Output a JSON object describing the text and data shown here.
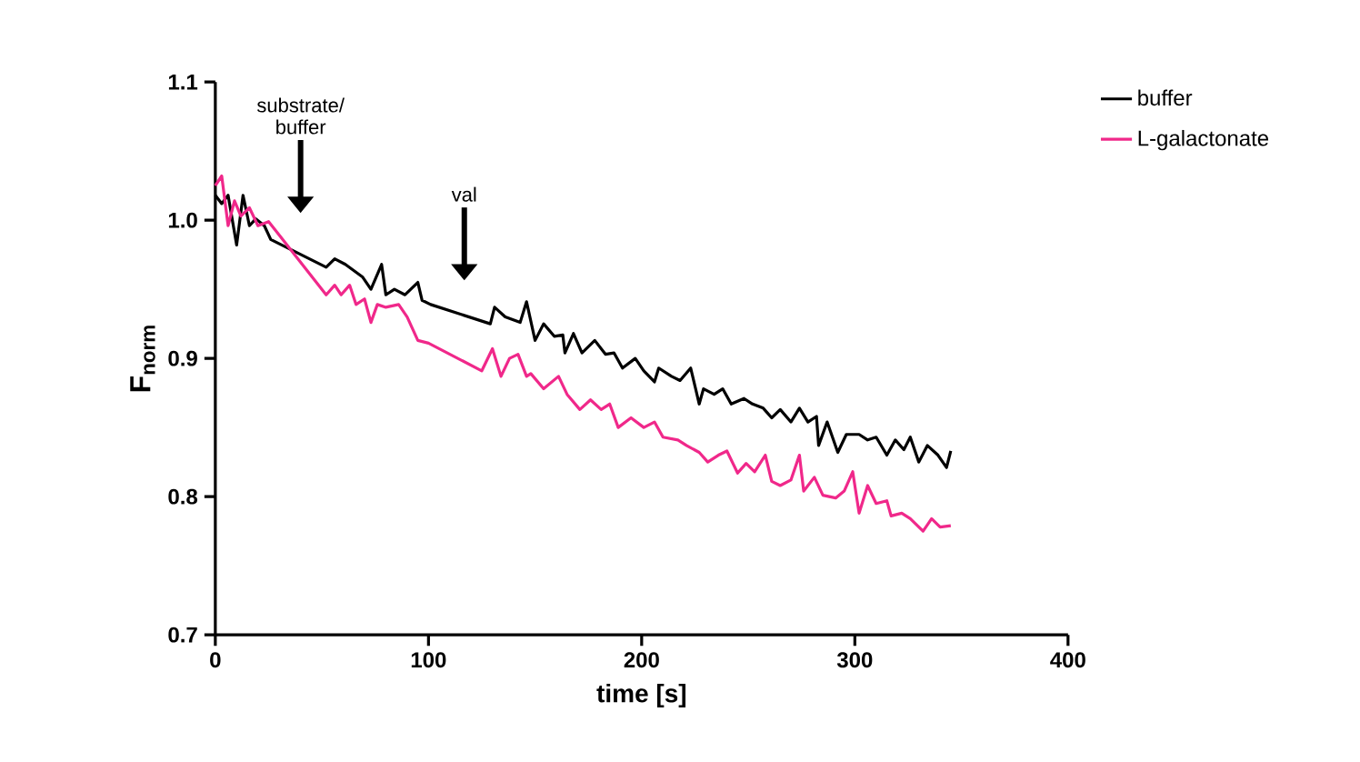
{
  "chart_data": {
    "type": "line",
    "xlabel": "time [s]",
    "ylabel": "**F**$_{norm}$",
    "xlim": [
      0,
      400
    ],
    "xticks": [
      0,
      100,
      200,
      300,
      400
    ],
    "ylim": [
      0.7,
      1.1
    ],
    "yticks": [
      0.7,
      0.8,
      0.9,
      {
        "value": 1.0,
        "label": "1.0"
      },
      1.1
    ],
    "grid": false,
    "legend": "top right",
    "marker": "none",
    "line_style": "solid",
    "annotations": [
      "substrate/ buffer",
      "val"
    ],
    "series": [
      {
        "name": "buffer",
        "color": "#000000",
        "x": [
          0,
          3,
          6,
          10,
          13,
          16,
          19,
          23,
          26,
          52,
          56,
          61,
          69,
          73,
          78,
          80,
          84,
          89,
          95,
          97,
          101,
          129,
          131,
          136,
          143,
          146,
          150,
          154,
          159,
          163,
          164,
          168,
          172,
          178,
          183,
          187,
          191,
          197,
          201,
          206,
          208,
          214,
          218,
          223,
          227,
          229,
          234,
          238,
          242,
          248,
          252,
          257,
          261,
          265,
          270,
          274,
          278,
          282,
          283,
          287,
          292,
          296,
          302,
          306,
          310,
          315,
          319,
          323,
          326,
          330,
          334,
          339,
          343,
          345
        ],
        "values": [
          1.018,
          1.012,
          1.018,
          0.982,
          1.018,
          0.996,
          1.001,
          0.996,
          0.986,
          0.966,
          0.972,
          0.968,
          0.959,
          0.95,
          0.968,
          0.946,
          0.95,
          0.946,
          0.955,
          0.942,
          0.939,
          0.925,
          0.937,
          0.93,
          0.926,
          0.941,
          0.913,
          0.925,
          0.916,
          0.917,
          0.904,
          0.918,
          0.904,
          0.913,
          0.903,
          0.904,
          0.893,
          0.9,
          0.891,
          0.883,
          0.893,
          0.887,
          0.884,
          0.893,
          0.867,
          0.878,
          0.874,
          0.878,
          0.867,
          0.871,
          0.867,
          0.864,
          0.857,
          0.863,
          0.854,
          0.864,
          0.854,
          0.858,
          0.837,
          0.854,
          0.832,
          0.845,
          0.845,
          0.841,
          0.843,
          0.83,
          0.841,
          0.834,
          0.843,
          0.825,
          0.837,
          0.83,
          0.821,
          0.833
        ]
      },
      {
        "name": "L-galactonate",
        "color": "#f0288a",
        "x": [
          0,
          3,
          6,
          9,
          12,
          16,
          20,
          25,
          52,
          56,
          59,
          63,
          66,
          70,
          73,
          76,
          80,
          86,
          90,
          95,
          100,
          125,
          130,
          134,
          138,
          142,
          146,
          148,
          154,
          161,
          165,
          171,
          176,
          181,
          185,
          189,
          195,
          201,
          206,
          210,
          217,
          221,
          227,
          231,
          236,
          240,
          245,
          249,
          253,
          258,
          261,
          265,
          270,
          274,
          276,
          281,
          285,
          291,
          295,
          299,
          302,
          306,
          310,
          315,
          317,
          322,
          326,
          332,
          336,
          340,
          345
        ],
        "values": [
          1.025,
          1.032,
          0.996,
          1.014,
          1.003,
          1.009,
          0.996,
          0.999,
          0.946,
          0.953,
          0.946,
          0.953,
          0.939,
          0.943,
          0.926,
          0.939,
          0.937,
          0.939,
          0.93,
          0.913,
          0.911,
          0.891,
          0.907,
          0.887,
          0.9,
          0.903,
          0.887,
          0.889,
          0.878,
          0.887,
          0.874,
          0.863,
          0.87,
          0.863,
          0.867,
          0.85,
          0.857,
          0.85,
          0.854,
          0.843,
          0.841,
          0.837,
          0.832,
          0.825,
          0.83,
          0.833,
          0.817,
          0.824,
          0.818,
          0.83,
          0.811,
          0.808,
          0.812,
          0.83,
          0.804,
          0.814,
          0.801,
          0.799,
          0.804,
          0.818,
          0.788,
          0.808,
          0.795,
          0.797,
          0.786,
          0.788,
          0.784,
          0.775,
          0.784,
          0.778,
          0.779
        ]
      }
    ]
  }
}
